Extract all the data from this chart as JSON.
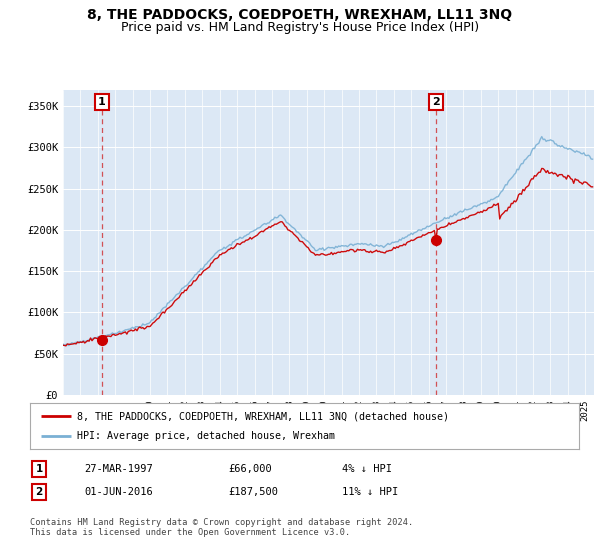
{
  "title": "8, THE PADDOCKS, COEDPOETH, WREXHAM, LL11 3NQ",
  "subtitle": "Price paid vs. HM Land Registry's House Price Index (HPI)",
  "ylim": [
    0,
    370000
  ],
  "yticks": [
    0,
    50000,
    100000,
    150000,
    200000,
    250000,
    300000,
    350000
  ],
  "ytick_labels": [
    "£0",
    "£50K",
    "£100K",
    "£150K",
    "£200K",
    "£250K",
    "£300K",
    "£350K"
  ],
  "plot_bg_color": "#dce8f5",
  "sale1_date_num": 1997.24,
  "sale1_price": 66000,
  "sale1_label": "1",
  "sale2_date_num": 2016.42,
  "sale2_price": 187500,
  "sale2_label": "2",
  "legend_line1": "8, THE PADDOCKS, COEDPOETH, WREXHAM, LL11 3NQ (detached house)",
  "legend_line2": "HPI: Average price, detached house, Wrexham",
  "table_row1": [
    "1",
    "27-MAR-1997",
    "£66,000",
    "4% ↓ HPI"
  ],
  "table_row2": [
    "2",
    "01-JUN-2016",
    "£187,500",
    "11% ↓ HPI"
  ],
  "footnote": "Contains HM Land Registry data © Crown copyright and database right 2024.\nThis data is licensed under the Open Government Licence v3.0.",
  "line_color_price": "#cc0000",
  "line_color_hpi": "#7ab0d4",
  "title_fontsize": 10,
  "subtitle_fontsize": 9,
  "xstart": 1995,
  "xend": 2025.5
}
